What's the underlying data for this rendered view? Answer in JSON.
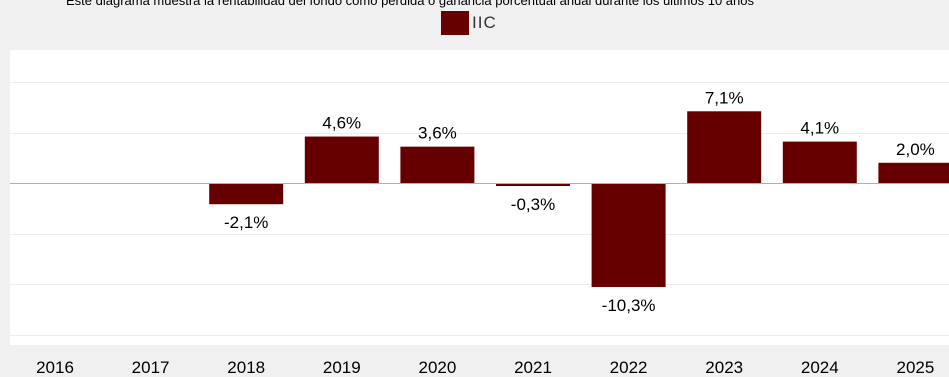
{
  "caption": "Este diagrama muestra la rentabilidad del fondo como pérdida o ganancia porcentual anual durante los últimos 10 años",
  "chart_data": {
    "type": "bar",
    "categories": [
      "2016",
      "2017",
      "2018",
      "2019",
      "2020",
      "2021",
      "2022",
      "2023",
      "2024",
      "2025"
    ],
    "series": [
      {
        "name": "IIC",
        "values": [
          null,
          null,
          -2.1,
          4.6,
          3.6,
          -0.3,
          -10.3,
          7.1,
          4.1,
          2.0
        ],
        "labels": [
          "",
          "",
          "-2,1%",
          "4,6%",
          "3,6%",
          "-0,3%",
          "-10,3%",
          "7,1%",
          "4,1%",
          "2,0%"
        ]
      }
    ],
    "ylim": [
      -15,
      10
    ],
    "grid": true,
    "legend": "top-center",
    "bar_color": "#660000"
  }
}
